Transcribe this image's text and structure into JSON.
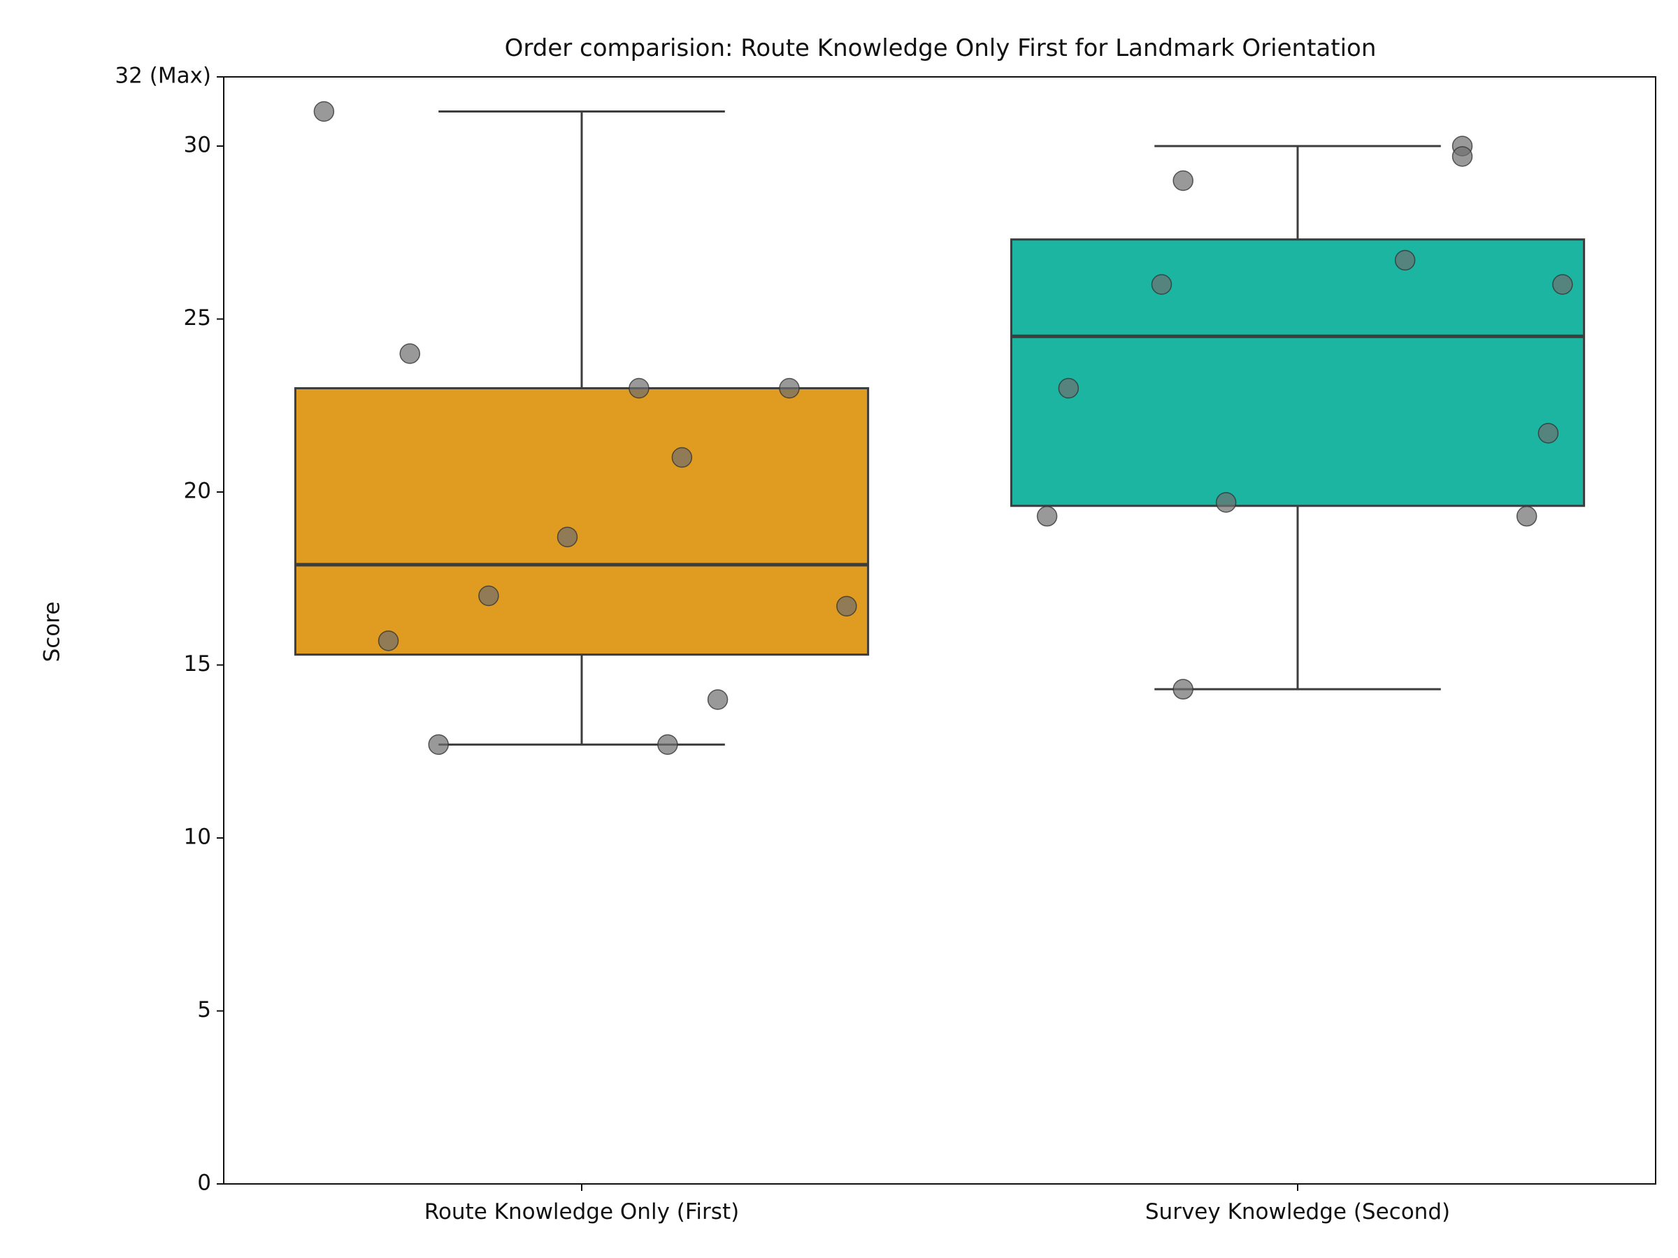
{
  "chart_data": {
    "type": "box",
    "title": "Order comparision: Route Knowledge Only First for Landmark Orientation",
    "xlabel": "",
    "ylabel": "Score",
    "ylim": [
      0,
      32
    ],
    "yticks": [
      {
        "value": 0,
        "label": "0"
      },
      {
        "value": 5,
        "label": "5"
      },
      {
        "value": 10,
        "label": "10"
      },
      {
        "value": 15,
        "label": "15"
      },
      {
        "value": 20,
        "label": "20"
      },
      {
        "value": 25,
        "label": "25"
      },
      {
        "value": 30,
        "label": "30"
      },
      {
        "value": 32,
        "label": "32 (Max)"
      }
    ],
    "categories": [
      "Route Knowledge Only (First)",
      "Survey Knowledge (Second)"
    ],
    "boxes": [
      {
        "category": "Route Knowledge Only (First)",
        "color": "#e09c20",
        "whisker_low": 12.7,
        "q1": 15.3,
        "median": 17.9,
        "q3": 23.0,
        "whisker_high": 31.0,
        "points": [
          {
            "jitter": -0.36,
            "y": 31.0
          },
          {
            "jitter": -0.24,
            "y": 24.0
          },
          {
            "jitter": 0.08,
            "y": 23.0
          },
          {
            "jitter": 0.29,
            "y": 23.0
          },
          {
            "jitter": 0.14,
            "y": 21.0
          },
          {
            "jitter": -0.02,
            "y": 18.7
          },
          {
            "jitter": -0.13,
            "y": 17.0
          },
          {
            "jitter": 0.37,
            "y": 16.7
          },
          {
            "jitter": -0.27,
            "y": 15.7
          },
          {
            "jitter": 0.19,
            "y": 14.0
          },
          {
            "jitter": -0.2,
            "y": 12.7
          },
          {
            "jitter": 0.12,
            "y": 12.7
          }
        ]
      },
      {
        "category": "Survey Knowledge (Second)",
        "color": "#1cb5a2",
        "whisker_low": 14.3,
        "q1": 19.6,
        "median": 24.5,
        "q3": 27.3,
        "whisker_high": 30.0,
        "points": [
          {
            "jitter": 0.23,
            "y": 30.0
          },
          {
            "jitter": 0.23,
            "y": 29.7
          },
          {
            "jitter": -0.16,
            "y": 29.0
          },
          {
            "jitter": 0.15,
            "y": 26.7
          },
          {
            "jitter": -0.19,
            "y": 26.0
          },
          {
            "jitter": 0.37,
            "y": 26.0
          },
          {
            "jitter": -0.32,
            "y": 23.0
          },
          {
            "jitter": 0.35,
            "y": 21.7
          },
          {
            "jitter": -0.1,
            "y": 19.7
          },
          {
            "jitter": -0.35,
            "y": 19.3
          },
          {
            "jitter": 0.32,
            "y": 19.3
          },
          {
            "jitter": -0.16,
            "y": 14.3
          }
        ]
      }
    ],
    "colors": {
      "outline": "#3d3d3d",
      "point_fill": "#6e6e6e",
      "point_opacity": 0.7,
      "axis": "#111111"
    },
    "grid": false,
    "legend": "none"
  }
}
